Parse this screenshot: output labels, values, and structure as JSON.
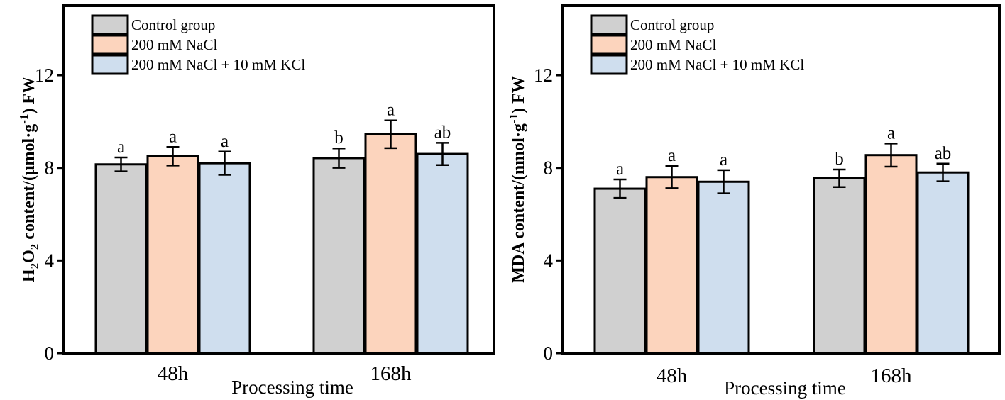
{
  "chart_data": [
    {
      "type": "bar",
      "title": "",
      "ylabel_parts": {
        "lead": "H",
        "sub1": "2",
        "mid": "O",
        "sub2": "2",
        "rest": " content/(μmol·g",
        "sup": "-1",
        "tail": ") FW"
      },
      "xlabel": "Processing time",
      "categories": [
        "48h",
        "168h"
      ],
      "ylim": [
        0,
        15
      ],
      "yticks": [
        "0",
        "4",
        "8",
        "12"
      ],
      "yticks_values": [
        0,
        4,
        8,
        12
      ],
      "series": [
        {
          "name": "Control group",
          "color": "#d0d0d0",
          "values": [
            8.15,
            8.42
          ],
          "errors": [
            0.3,
            0.42
          ],
          "labels": [
            "a",
            "b"
          ]
        },
        {
          "name": "200 mM NaCl",
          "color": "#fcd4bd",
          "values": [
            8.5,
            9.45
          ],
          "errors": [
            0.4,
            0.6
          ],
          "labels": [
            "a",
            "a"
          ]
        },
        {
          "name": "200 mM NaCl + 10 mM KCl",
          "color": "#cfdeee",
          "values": [
            8.2,
            8.6
          ],
          "errors": [
            0.5,
            0.48
          ],
          "labels": [
            "a",
            "ab"
          ]
        }
      ]
    },
    {
      "type": "bar",
      "title": "",
      "ylabel_parts": {
        "lead": "MDA content/(nmol·g",
        "sup": "-1",
        "tail": ") FW"
      },
      "xlabel": "Processing time",
      "categories": [
        "48h",
        "168h"
      ],
      "ylim": [
        0,
        15
      ],
      "yticks": [
        "0",
        "4",
        "8",
        "12"
      ],
      "yticks_values": [
        0,
        4,
        8,
        12
      ],
      "series": [
        {
          "name": "Control group",
          "color": "#d0d0d0",
          "values": [
            7.1,
            7.55
          ],
          "errors": [
            0.4,
            0.38
          ],
          "labels": [
            "a",
            "b"
          ]
        },
        {
          "name": "200 mM NaCl",
          "color": "#fcd4bd",
          "values": [
            7.6,
            8.55
          ],
          "errors": [
            0.48,
            0.5
          ],
          "labels": [
            "a",
            "a"
          ]
        },
        {
          "name": "200 mM NaCl + 10 mM KCl",
          "color": "#cfdeee",
          "values": [
            7.4,
            7.8
          ],
          "errors": [
            0.5,
            0.38
          ],
          "labels": [
            "a",
            "ab"
          ]
        }
      ]
    }
  ]
}
